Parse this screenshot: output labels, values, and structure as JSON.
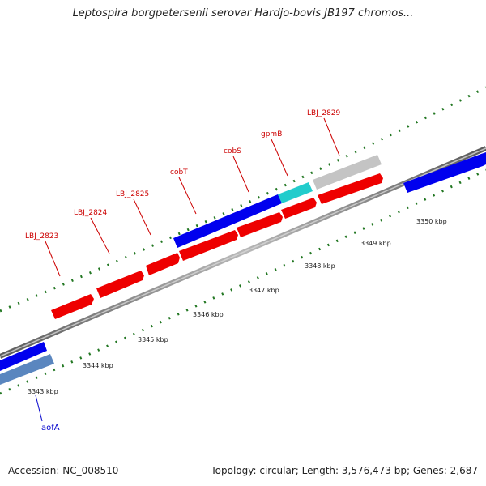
{
  "title": "Leptospira borgpetersenii serovar Hardjo-bovis JB197 chromos...",
  "footer": {
    "accession": "Accession: NC_008510",
    "topology": "Topology: circular; Length: 3,576,473 bp; Genes: 2,687"
  },
  "colors": {
    "forward_gene": "#0000ee",
    "reverse_gene": "#ee0000",
    "light_blue_gene": "#5a86bf",
    "cyan_gene": "#22cccc",
    "gray_gene": "#c4c4c4",
    "backbone": "#8a8a8a",
    "tick": "#227722",
    "label_red": "#cc0000",
    "label_blue": "#0000cc"
  },
  "scale_ticks": [
    {
      "label": "3343 kbp"
    },
    {
      "label": "3344 kbp"
    },
    {
      "label": "3345 kbp"
    },
    {
      "label": "3346 kbp"
    },
    {
      "label": "3347 kbp"
    },
    {
      "label": "3348 kbp"
    },
    {
      "label": "3349 kbp"
    },
    {
      "label": "3350 kbp"
    }
  ],
  "gene_labels": [
    {
      "name": "LBJ_2823"
    },
    {
      "name": "LBJ_2824"
    },
    {
      "name": "LBJ_2825"
    },
    {
      "name": "cobT"
    },
    {
      "name": "cobS"
    },
    {
      "name": "gpmB"
    },
    {
      "name": "LBJ_2829"
    },
    {
      "name": "aofA"
    }
  ]
}
